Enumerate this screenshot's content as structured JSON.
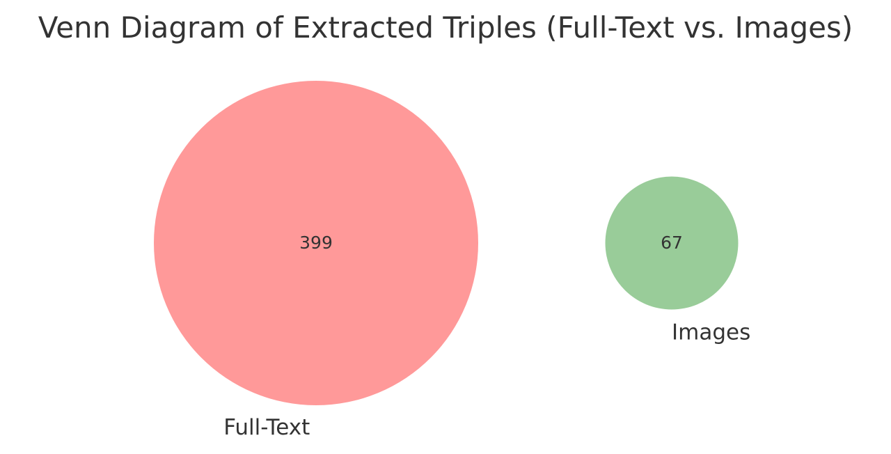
{
  "chart_data": {
    "type": "venn",
    "title": "Venn Diagram of Extracted Triples (Full-Text vs. Images)",
    "sets": [
      {
        "name": "Full-Text",
        "count": 399,
        "color": "#FF9999"
      },
      {
        "name": "Images",
        "count": 67,
        "color": "#99CC99"
      }
    ],
    "intersection": 0
  }
}
